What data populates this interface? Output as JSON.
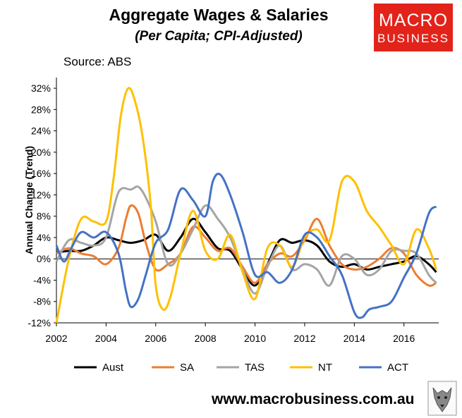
{
  "header": {
    "title": "Aggregate Wages & Salaries",
    "subtitle": "(Per Capita; CPI-Adjusted)",
    "source": "Source: ABS"
  },
  "logo": {
    "line1": "MACRO",
    "line2": "BUSINESS",
    "color": "#e2231a"
  },
  "footer": {
    "url": "www.macrobusiness.com.au"
  },
  "chart_data": {
    "type": "line",
    "ylabel": "Annual Change (Trend)",
    "xlabel": "",
    "xlim": [
      2002,
      2017.4
    ],
    "ylim": [
      -12,
      34
    ],
    "xticks": [
      2002,
      2004,
      2006,
      2008,
      2010,
      2012,
      2014,
      2016
    ],
    "yticks": [
      -12,
      -8,
      -4,
      0,
      4,
      8,
      12,
      16,
      20,
      24,
      28,
      32
    ],
    "ytick_format": "percent",
    "grid": false,
    "legend": "bottom",
    "series": [
      {
        "name": "Aust",
        "color": "#000000",
        "width": 3,
        "points": [
          [
            2002.0,
            1.2
          ],
          [
            2002.5,
            1.5
          ],
          [
            2003.0,
            1.5
          ],
          [
            2003.5,
            2.5
          ],
          [
            2004.0,
            4.0
          ],
          [
            2004.5,
            3.5
          ],
          [
            2005.0,
            3.0
          ],
          [
            2005.5,
            3.5
          ],
          [
            2006.0,
            4.5
          ],
          [
            2006.5,
            1.5
          ],
          [
            2007.0,
            4.0
          ],
          [
            2007.5,
            7.5
          ],
          [
            2008.0,
            5.0
          ],
          [
            2008.5,
            2.0
          ],
          [
            2009.0,
            1.5
          ],
          [
            2009.5,
            -2.0
          ],
          [
            2010.0,
            -5.0
          ],
          [
            2010.5,
            -1.0
          ],
          [
            2011.0,
            3.5
          ],
          [
            2011.5,
            3.0
          ],
          [
            2012.0,
            3.5
          ],
          [
            2012.5,
            2.5
          ],
          [
            2013.0,
            -0.5
          ],
          [
            2013.5,
            -1.5
          ],
          [
            2014.0,
            -1.0
          ],
          [
            2014.5,
            -2.0
          ],
          [
            2015.0,
            -1.5
          ],
          [
            2015.5,
            -1.0
          ],
          [
            2016.0,
            -0.5
          ],
          [
            2016.5,
            0.5
          ],
          [
            2017.0,
            -1.0
          ],
          [
            2017.3,
            -2.5
          ]
        ]
      },
      {
        "name": "SA",
        "color": "#ed7d31",
        "width": 3,
        "points": [
          [
            2002.0,
            1.0
          ],
          [
            2002.5,
            2.0
          ],
          [
            2003.0,
            1.0
          ],
          [
            2003.5,
            0.5
          ],
          [
            2004.0,
            -1.0
          ],
          [
            2004.5,
            2.0
          ],
          [
            2004.8,
            7.5
          ],
          [
            2005.0,
            10.0
          ],
          [
            2005.3,
            8.5
          ],
          [
            2005.6,
            3.0
          ],
          [
            2006.0,
            -2.0
          ],
          [
            2006.5,
            -1.0
          ],
          [
            2007.0,
            1.0
          ],
          [
            2007.5,
            6.0
          ],
          [
            2008.0,
            4.0
          ],
          [
            2008.5,
            1.5
          ],
          [
            2009.0,
            2.0
          ],
          [
            2009.5,
            -1.5
          ],
          [
            2010.0,
            -4.5
          ],
          [
            2010.5,
            -1.0
          ],
          [
            2011.0,
            1.0
          ],
          [
            2011.5,
            0.5
          ],
          [
            2012.0,
            3.5
          ],
          [
            2012.5,
            7.5
          ],
          [
            2013.0,
            2.5
          ],
          [
            2013.5,
            -1.0
          ],
          [
            2014.0,
            -2.0
          ],
          [
            2014.5,
            -1.5
          ],
          [
            2015.0,
            0.0
          ],
          [
            2015.5,
            2.0
          ],
          [
            2016.0,
            1.0
          ],
          [
            2016.5,
            -3.0
          ],
          [
            2017.0,
            -5.0
          ],
          [
            2017.3,
            -4.5
          ]
        ]
      },
      {
        "name": "TAS",
        "color": "#a5a5a5",
        "width": 3,
        "points": [
          [
            2002.0,
            -0.5
          ],
          [
            2002.5,
            3.5
          ],
          [
            2003.0,
            3.0
          ],
          [
            2003.5,
            2.5
          ],
          [
            2004.0,
            4.0
          ],
          [
            2004.5,
            12.5
          ],
          [
            2005.0,
            13.0
          ],
          [
            2005.3,
            13.5
          ],
          [
            2005.6,
            11.5
          ],
          [
            2006.0,
            7.0
          ],
          [
            2006.5,
            -1.0
          ],
          [
            2007.0,
            1.0
          ],
          [
            2007.5,
            5.5
          ],
          [
            2008.0,
            10.0
          ],
          [
            2008.5,
            7.5
          ],
          [
            2009.0,
            4.0
          ],
          [
            2009.5,
            -2.0
          ],
          [
            2010.0,
            -6.5
          ],
          [
            2010.5,
            -1.5
          ],
          [
            2011.0,
            2.5
          ],
          [
            2011.5,
            -2.0
          ],
          [
            2012.0,
            -1.0
          ],
          [
            2012.5,
            -2.0
          ],
          [
            2013.0,
            -5.0
          ],
          [
            2013.5,
            0.5
          ],
          [
            2014.0,
            0.0
          ],
          [
            2014.5,
            -3.0
          ],
          [
            2015.0,
            -2.0
          ],
          [
            2015.5,
            1.5
          ],
          [
            2016.0,
            1.5
          ],
          [
            2016.5,
            1.0
          ],
          [
            2017.0,
            -3.0
          ],
          [
            2017.3,
            -4.5
          ]
        ]
      },
      {
        "name": "NT",
        "color": "#ffc000",
        "width": 3,
        "points": [
          [
            2002.0,
            -12.0
          ],
          [
            2002.5,
            0.0
          ],
          [
            2003.0,
            7.5
          ],
          [
            2003.5,
            7.0
          ],
          [
            2004.0,
            7.0
          ],
          [
            2004.3,
            15.0
          ],
          [
            2004.6,
            27.0
          ],
          [
            2004.9,
            32.0
          ],
          [
            2005.2,
            29.0
          ],
          [
            2005.5,
            22.0
          ],
          [
            2005.8,
            10.0
          ],
          [
            2006.0,
            -5.0
          ],
          [
            2006.3,
            -9.5
          ],
          [
            2006.6,
            -7.0
          ],
          [
            2007.0,
            1.0
          ],
          [
            2007.5,
            9.0
          ],
          [
            2008.0,
            1.5
          ],
          [
            2008.5,
            0.0
          ],
          [
            2009.0,
            4.5
          ],
          [
            2009.5,
            -2.5
          ],
          [
            2010.0,
            -7.5
          ],
          [
            2010.5,
            2.0
          ],
          [
            2011.0,
            2.5
          ],
          [
            2011.5,
            -1.5
          ],
          [
            2012.0,
            4.0
          ],
          [
            2012.5,
            5.5
          ],
          [
            2013.0,
            3.5
          ],
          [
            2013.5,
            14.5
          ],
          [
            2014.0,
            14.5
          ],
          [
            2014.5,
            9.0
          ],
          [
            2015.0,
            6.0
          ],
          [
            2015.5,
            2.5
          ],
          [
            2016.0,
            -1.0
          ],
          [
            2016.5,
            5.5
          ],
          [
            2017.0,
            2.0
          ],
          [
            2017.3,
            -2.0
          ]
        ]
      },
      {
        "name": "ACT",
        "color": "#4472c4",
        "width": 3,
        "points": [
          [
            2002.0,
            2.5
          ],
          [
            2002.3,
            -0.5
          ],
          [
            2002.6,
            2.0
          ],
          [
            2003.0,
            5.0
          ],
          [
            2003.5,
            4.0
          ],
          [
            2004.0,
            5.0
          ],
          [
            2004.5,
            1.0
          ],
          [
            2004.8,
            -6.0
          ],
          [
            2005.0,
            -9.0
          ],
          [
            2005.3,
            -7.5
          ],
          [
            2005.6,
            -3.0
          ],
          [
            2006.0,
            3.0
          ],
          [
            2006.5,
            5.5
          ],
          [
            2007.0,
            13.0
          ],
          [
            2007.5,
            11.0
          ],
          [
            2008.0,
            8.0
          ],
          [
            2008.3,
            14.5
          ],
          [
            2008.6,
            15.8
          ],
          [
            2009.0,
            12.0
          ],
          [
            2009.5,
            5.0
          ],
          [
            2010.0,
            -3.0
          ],
          [
            2010.5,
            -2.5
          ],
          [
            2011.0,
            -4.5
          ],
          [
            2011.5,
            -2.0
          ],
          [
            2012.0,
            4.5
          ],
          [
            2012.5,
            4.0
          ],
          [
            2013.0,
            0.5
          ],
          [
            2013.5,
            -3.0
          ],
          [
            2014.0,
            -10.0
          ],
          [
            2014.3,
            -11.0
          ],
          [
            2014.6,
            -9.5
          ],
          [
            2015.0,
            -9.0
          ],
          [
            2015.5,
            -8.0
          ],
          [
            2016.0,
            -3.5
          ],
          [
            2016.5,
            1.0
          ],
          [
            2017.0,
            8.5
          ],
          [
            2017.3,
            9.8
          ]
        ]
      }
    ]
  }
}
